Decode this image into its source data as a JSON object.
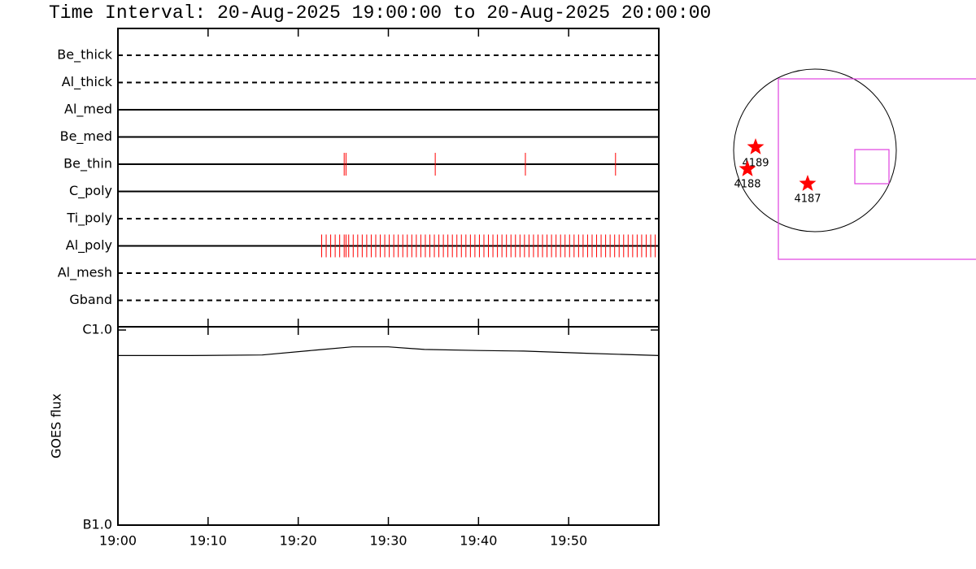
{
  "title": "Time Interval: 20-Aug-2025 19:00:00 to 20-Aug-2025 20:00:00",
  "chart_data": [
    {
      "type": "timeline",
      "categories": [
        "Be_thick",
        "Al_thick",
        "Al_med",
        "Be_med",
        "Be_thin",
        "C_poly",
        "Ti_poly",
        "Al_poly",
        "Al_mesh",
        "Gband"
      ],
      "line_styles": [
        "dashed",
        "dashed",
        "solid",
        "solid",
        "solid",
        "solid",
        "dashed",
        "solid",
        "dashed",
        "dashed"
      ],
      "color": "#ff0000",
      "events": [
        [],
        [],
        [],
        [],
        [
          25.1,
          25.3,
          35.2,
          45.2,
          55.2
        ],
        [],
        [],
        [
          22.6,
          23.1,
          23.6,
          24.1,
          24.6,
          25.1,
          25.3,
          25.6,
          26.1,
          26.6,
          27.1,
          27.6,
          28.1,
          28.6,
          29.1,
          29.6,
          30.1,
          30.6,
          31.1,
          31.6,
          32.1,
          32.6,
          33.1,
          33.6,
          34.1,
          34.6,
          35.1,
          35.6,
          36.1,
          36.6,
          37.1,
          37.6,
          38.1,
          38.6,
          39.1,
          39.6,
          40.1,
          40.6,
          41.1,
          41.6,
          42.1,
          42.6,
          43.1,
          43.6,
          44.1,
          44.6,
          45.1,
          45.6,
          46.1,
          46.6,
          47.1,
          47.6,
          48.1,
          48.6,
          49.1,
          49.6,
          50.1,
          50.6,
          51.1,
          51.6,
          52.1,
          52.6,
          53.1,
          53.6,
          54.1,
          54.6,
          55.1,
          55.6,
          56.1,
          56.6,
          57.1,
          57.6,
          58.1,
          58.6,
          59.1,
          59.6
        ],
        [],
        []
      ],
      "xlim": [
        0,
        60
      ]
    },
    {
      "type": "line",
      "ylabel": "GOES flux",
      "log_scale": true,
      "x": [
        0,
        8,
        16,
        22,
        26,
        30,
        34,
        40,
        45,
        52,
        60
      ],
      "values": [
        7.4e-07,
        7.4e-07,
        7.45e-07,
        7.9e-07,
        8.2e-07,
        8.2e-07,
        7.95e-07,
        7.85e-07,
        7.8e-07,
        7.6e-07,
        7.4e-07
      ],
      "color": "#000000",
      "xlim": [
        0,
        60
      ],
      "ylim": [
        1e-07,
        1e-06
      ],
      "yticks": [
        {
          "value": 1e-07,
          "label": "B1.0"
        },
        {
          "value": 1e-06,
          "label": "C1.0"
        }
      ],
      "xticks": [
        {
          "value": 0,
          "label": "19:00"
        },
        {
          "value": 10,
          "label": "19:10"
        },
        {
          "value": 20,
          "label": "19:20"
        },
        {
          "value": 30,
          "label": "19:30"
        },
        {
          "value": 40,
          "label": "19:40"
        },
        {
          "value": 50,
          "label": "19:50"
        }
      ]
    }
  ],
  "map": {
    "labels": [
      "4189",
      "4188",
      "4187"
    ]
  }
}
